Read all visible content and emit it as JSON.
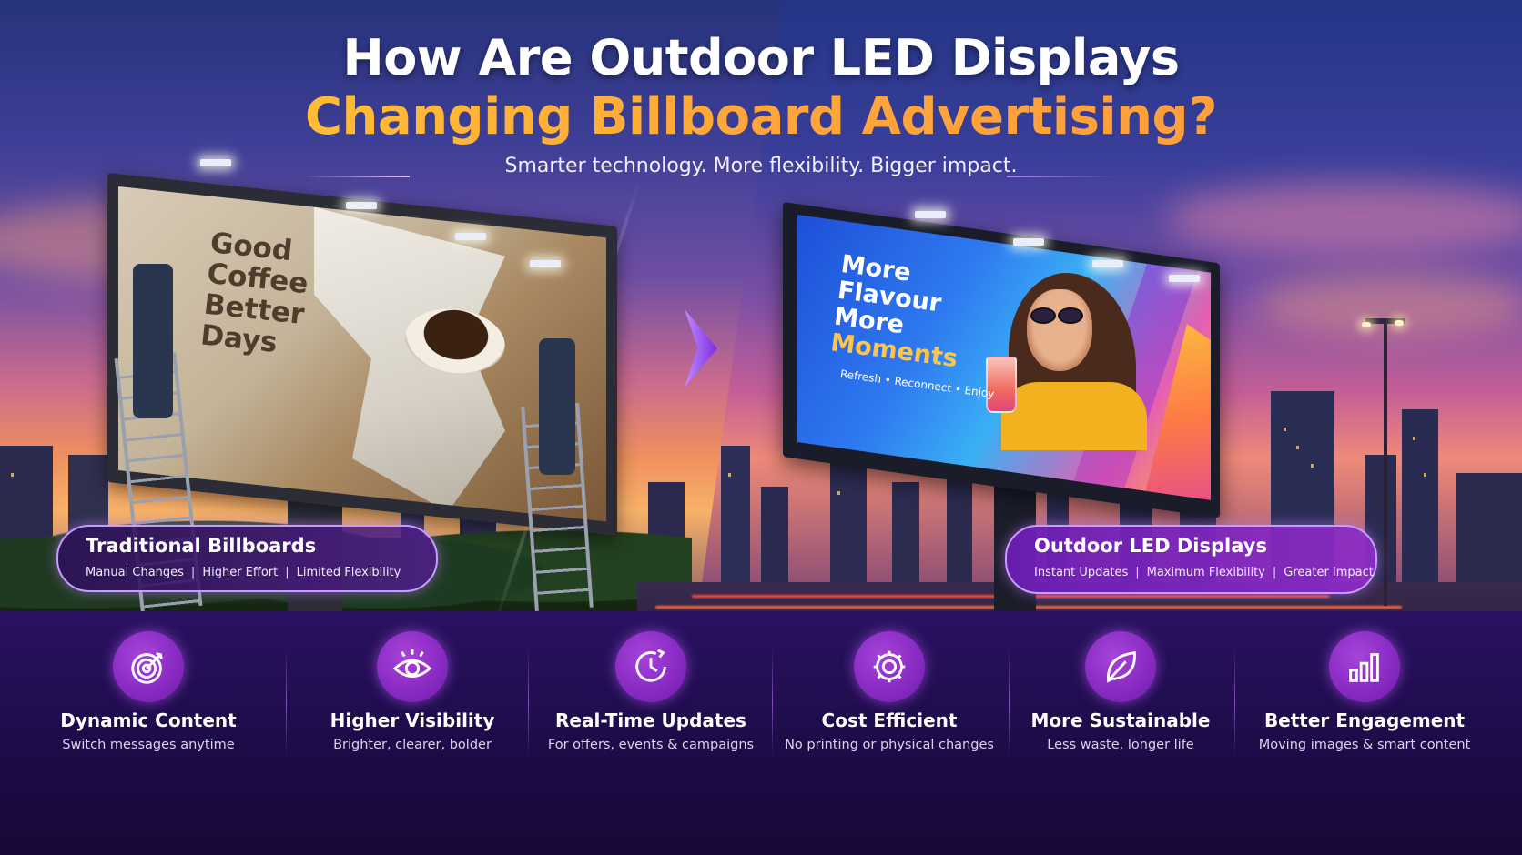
{
  "header": {
    "title_line1": "How Are Outdoor LED Displays",
    "title_line2": "Changing Billboard Advertising?",
    "subtitle": "Smarter technology. More flexibility. Bigger impact."
  },
  "left_billboard": {
    "poster_lines": [
      "Good",
      "Coffee",
      "Better",
      "Days"
    ]
  },
  "right_billboard": {
    "screen_lines": [
      "More",
      "Flavour",
      "More"
    ],
    "screen_highlight": "Moments",
    "screen_tagline": "Refresh • Reconnect • Enjoy"
  },
  "traditional": {
    "title": "Traditional Billboards",
    "items": [
      "Manual Changes",
      "Higher Effort",
      "Limited Flexibility"
    ]
  },
  "led": {
    "title": "Outdoor LED Displays",
    "items": [
      "Instant Updates",
      "Maximum Flexibility",
      "Greater Impact"
    ]
  },
  "features": [
    {
      "icon": "target-icon",
      "title": "Dynamic Content",
      "desc": "Switch messages anytime"
    },
    {
      "icon": "eye-icon",
      "title": "Higher Visibility",
      "desc": "Brighter, clearer, bolder"
    },
    {
      "icon": "clock-icon",
      "title": "Real-Time Updates",
      "desc": "For offers, events & campaigns"
    },
    {
      "icon": "gear-icon",
      "title": "Cost Efficient",
      "desc": "No printing or physical changes"
    },
    {
      "icon": "leaf-icon",
      "title": "More Sustainable",
      "desc": "Less waste, longer life"
    },
    {
      "icon": "bar-chart-icon",
      "title": "Better Engagement",
      "desc": "Moving images & smart content"
    }
  ],
  "colors": {
    "title_accent": "#ffb52e",
    "purple_band": "#1e0c4a",
    "icon_purple": "#8a2bc4",
    "pill_border": "#c89bff"
  }
}
